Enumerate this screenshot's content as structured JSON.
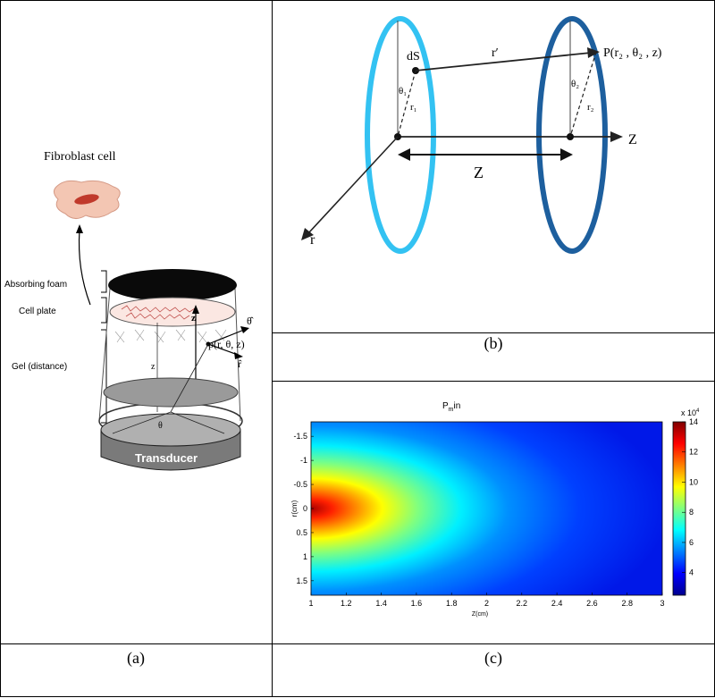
{
  "figure": {
    "captions": {
      "a": "(a)",
      "b": "(b)",
      "c": "(c)"
    }
  },
  "panel_a": {
    "cell_label": "Fibroblast cell",
    "layer_labels": [
      "Absorbing foam",
      "Cell plate",
      "Gel (distance)"
    ],
    "transducer_label": "Transducer",
    "point_label": "p(r, θ, z)",
    "axis_z": "z",
    "axis_theta": "θ̂",
    "axis_r": "r̂",
    "distance_label": "z",
    "angle_label": "θ"
  },
  "panel_b": {
    "ds": "dS",
    "r_prime": "r′",
    "point": "P(r₂ , θ₂ , z)",
    "theta1": "θ₁",
    "r1": "r₁",
    "theta2": "θ₂",
    "r2": "r₂",
    "z_axis": "Z",
    "distance": "Z",
    "r_axis": "r",
    "colors": {
      "ring_left": "#33c2f2",
      "ring_right": "#1d5f9e"
    }
  },
  "chart_data": {
    "type": "heatmap",
    "title": "P_min",
    "title_main": "P",
    "title_sub": "m",
    "title_rest": "in",
    "xlabel": "Z(cm)",
    "ylabel": "r(cm)",
    "xlim": [
      1,
      3
    ],
    "ylim": [
      -1.8,
      1.8
    ],
    "x_ticks": [
      "1",
      "1.2",
      "1.4",
      "1.6",
      "1.8",
      "2",
      "2.2",
      "2.4",
      "2.6",
      "2.8",
      "3"
    ],
    "y_ticks": [
      "-1.5",
      "-1",
      "-0.5",
      "0",
      "0.5",
      "1",
      "1.5"
    ],
    "colorbar": {
      "range": [
        2.5,
        14
      ],
      "ticks": [
        "4",
        "6",
        "8",
        "10",
        "12",
        "14"
      ],
      "exponent_base": "x 10",
      "exponent": "4"
    },
    "field_description_values": {
      "peak_value": 14,
      "peak_location": {
        "z": 1.0,
        "r": 0
      },
      "background_value": 2.7
    },
    "colormap": "jet"
  }
}
